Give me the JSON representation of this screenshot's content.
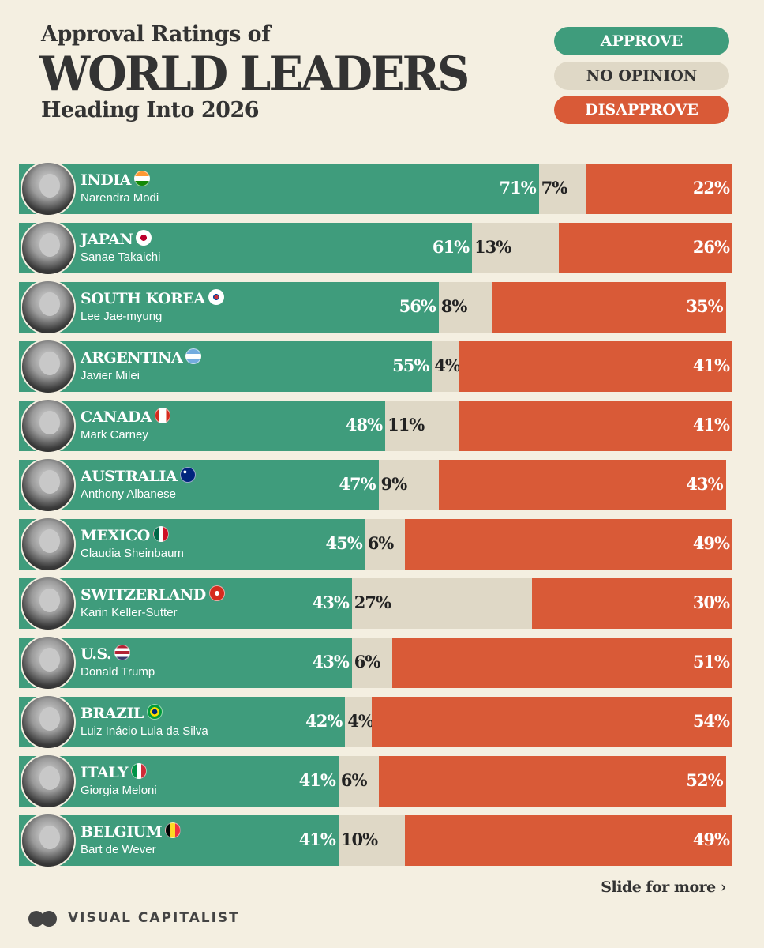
{
  "header": {
    "title_small": "Approval Ratings of",
    "title_big": "WORLD LEADERS",
    "subtitle": "Heading Into 2026"
  },
  "legend": {
    "approve": "APPROVE",
    "no_opinion": "NO OPINION",
    "disapprove": "DISAPPROVE"
  },
  "colors": {
    "approve": "#3f9c7c",
    "no_opinion": "#dfd8c6",
    "disapprove": "#d95a37",
    "background": "#f4efe1"
  },
  "chart_data": {
    "type": "bar",
    "orientation": "horizontal",
    "stacked": true,
    "unit": "%",
    "xlim": [
      0,
      100
    ],
    "grid": false,
    "legend_position": "top-right",
    "categories": [
      "INDIA",
      "JAPAN",
      "SOUTH KOREA",
      "ARGENTINA",
      "CANADA",
      "AUSTRALIA",
      "MEXICO",
      "SWITZERLAND",
      "U.S.",
      "BRAZIL",
      "ITALY",
      "BELGIUM"
    ],
    "leaders": [
      "Narendra Modi",
      "Sanae Takaichi",
      "Lee Jae-myung",
      "Javier Milei",
      "Mark Carney",
      "Anthony Albanese",
      "Claudia Sheinbaum",
      "Karin Keller-Sutter",
      "Donald Trump",
      "Luiz Inácio Lula da Silva",
      "Giorgia Meloni",
      "Bart de Wever"
    ],
    "flag_icons": [
      "india-flag-icon",
      "japan-flag-icon",
      "south-korea-flag-icon",
      "argentina-flag-icon",
      "canada-flag-icon",
      "australia-flag-icon",
      "mexico-flag-icon",
      "switzerland-flag-icon",
      "us-flag-icon",
      "brazil-flag-icon",
      "italy-flag-icon",
      "belgium-flag-icon"
    ],
    "series": [
      {
        "name": "APPROVE",
        "values": [
          71,
          61,
          56,
          55,
          48,
          47,
          45,
          43,
          43,
          42,
          41,
          41
        ]
      },
      {
        "name": "NO OPINION",
        "values": [
          7,
          13,
          8,
          4,
          11,
          9,
          6,
          27,
          6,
          4,
          6,
          10
        ]
      },
      {
        "name": "DISAPPROVE",
        "values": [
          22,
          26,
          35,
          41,
          41,
          43,
          49,
          30,
          51,
          54,
          52,
          49
        ]
      }
    ]
  },
  "footer": {
    "slide_text": "Slide for more ›",
    "brand": "VISUAL CAPITALIST"
  }
}
